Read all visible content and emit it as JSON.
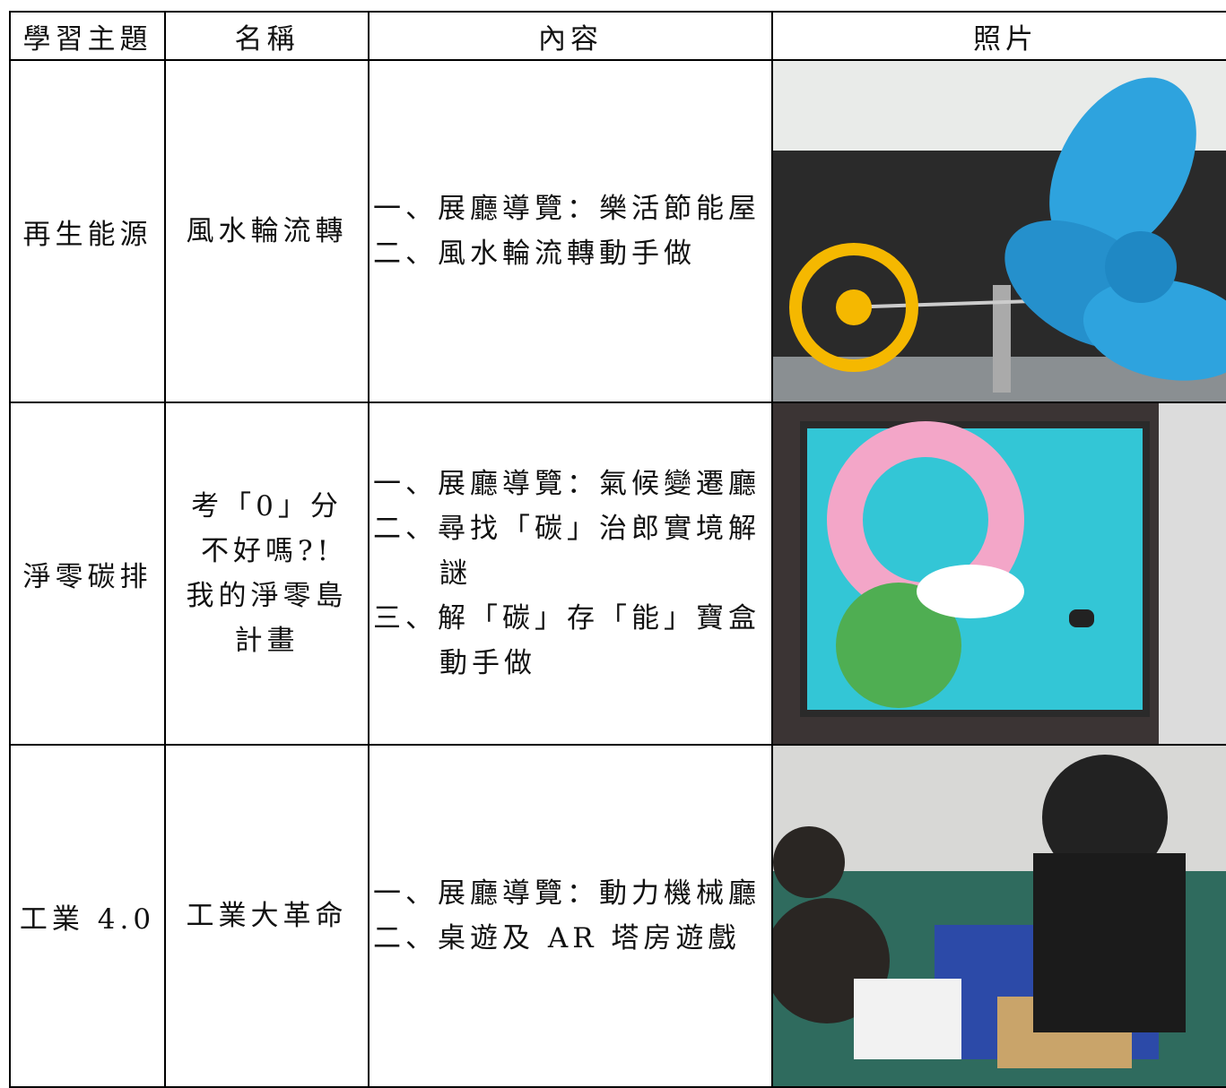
{
  "table": {
    "header": [
      "學習主題",
      "名稱",
      "內容",
      "照片"
    ],
    "rows": [
      {
        "theme": "再生能源",
        "name": "風水輪流轉",
        "content": [
          "一、展廳導覽：樂活節能屋",
          "二、風水輪流轉動手做"
        ]
      },
      {
        "theme": "淨零碳排",
        "name": "考「0」分不好嗎?! 我的淨零島計畫",
        "content": [
          "一、展廳導覽：氣候變遷廳",
          "二、尋找「碳」治郎實境解謎",
          "三、解「碳」存「能」寶盒動手做"
        ]
      },
      {
        "theme": "工業 4.0",
        "name": "工業大革命",
        "content": [
          "一、展廳導覽：動力機械廳",
          "二、桌遊及 AR 塔房遊戲"
        ]
      }
    ]
  }
}
